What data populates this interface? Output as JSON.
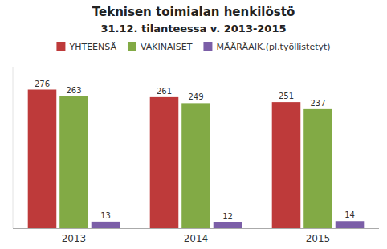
{
  "chart_data": {
    "type": "bar",
    "title": "Teknisen toimialan henkilöstö",
    "subtitle": "31.12. tilanteessa v. 2013-2015",
    "categories": [
      "2013",
      "2014",
      "2015"
    ],
    "series": [
      {
        "name": "YHTEENSÄ",
        "color": "#be3a3a",
        "values": [
          276,
          261,
          251
        ]
      },
      {
        "name": "VAKINAISET",
        "color": "#82aa45",
        "values": [
          263,
          249,
          237
        ]
      },
      {
        "name": "MÄÄRÄAIK.(pl.työllistetyt)",
        "color": "#7b5ea7",
        "values": [
          13,
          12,
          14
        ]
      }
    ],
    "ylim": [
      0,
      320
    ],
    "tick_labels": "x",
    "data_labels": true,
    "legend": "top"
  }
}
